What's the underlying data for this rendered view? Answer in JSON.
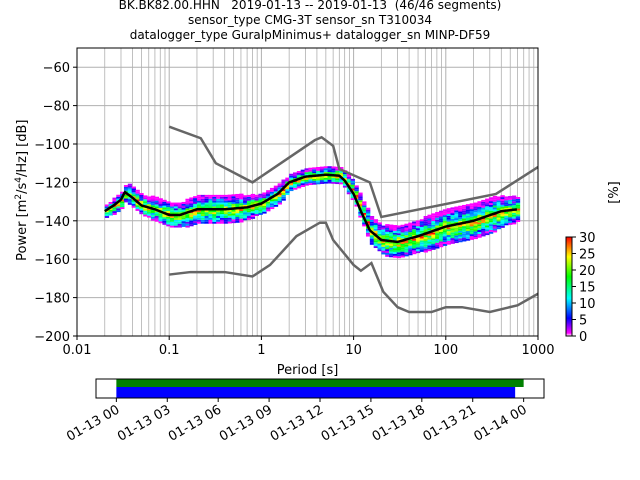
{
  "title": {
    "line1": "BK.BK82.00.HHN   2019-01-13 -- 2019-01-13  (46/46 segments)",
    "line2": "sensor_type CMG-3T sensor_sn T310034",
    "line3": "datalogger_type GuralpMinimus+ datalogger_sn MINP-DF59"
  },
  "chart_data": {
    "type": "heatmap",
    "title": "BK.BK82.00.HHN   2019-01-13 -- 2019-01-13  (46/46 segments)",
    "xlabel": "Period [s]",
    "ylabel_prefix": "Power [m",
    "ylabel_parts": [
      "2",
      "/s",
      "4",
      "/Hz] [dB]"
    ],
    "xscale": "log",
    "xlim": [
      0.01,
      1000
    ],
    "ylim": [
      -200,
      -50
    ],
    "xticks": [
      0.01,
      0.1,
      1,
      10,
      100,
      1000
    ],
    "xtick_labels": [
      "0.01",
      "0.1",
      "1",
      "10",
      "100",
      "1000"
    ],
    "yticks": [
      -200,
      -180,
      -160,
      -140,
      -120,
      -100,
      -80,
      -60
    ],
    "ytick_labels": [
      "−200",
      "−180",
      "−160",
      "−140",
      "−120",
      "−100",
      "−80",
      "−60"
    ],
    "grid": true,
    "colorbar": {
      "label": "[%]",
      "range": [
        0,
        30
      ],
      "ticks": [
        "0",
        "5",
        "10",
        "15",
        "20",
        "25",
        "30"
      ],
      "colormap": "pqlx"
    },
    "mean_curve": {
      "periods": [
        0.02,
        0.025,
        0.03,
        0.033,
        0.04,
        0.05,
        0.07,
        0.1,
        0.13,
        0.2,
        0.4,
        0.7,
        1,
        1.5,
        2,
        3,
        5,
        7,
        8,
        10,
        12,
        15,
        20,
        30,
        50,
        100,
        200,
        400,
        600
      ],
      "power": [
        -135,
        -132,
        -129,
        -125,
        -128,
        -132,
        -134,
        -137,
        -137,
        -134,
        -134,
        -133,
        -131,
        -126,
        -120,
        -117,
        -116,
        -116.5,
        -119,
        -126,
        -135,
        -145,
        -150,
        -151,
        -148,
        -143,
        -140,
        -135,
        -134
      ]
    },
    "histogram_spread_db": [
      [
        0.02,
        3
      ],
      [
        0.04,
        5
      ],
      [
        0.1,
        6
      ],
      [
        0.2,
        7
      ],
      [
        0.5,
        7
      ],
      [
        1,
        5
      ],
      [
        3,
        4
      ],
      [
        7,
        4
      ],
      [
        15,
        7
      ],
      [
        30,
        8
      ],
      [
        100,
        9
      ],
      [
        300,
        9
      ],
      [
        600,
        6
      ]
    ],
    "nhnm": {
      "periods": [
        0.1,
        0.22,
        0.32,
        0.8,
        3.8,
        4.5,
        6,
        7,
        15,
        20,
        350,
        1000
      ],
      "power": [
        -91,
        -97,
        -110,
        -120,
        -98,
        -96.5,
        -101,
        -113,
        -120,
        -138,
        -126,
        -112
      ]
    },
    "nlnm": {
      "periods": [
        0.1,
        0.17,
        0.4,
        0.8,
        1.24,
        2.4,
        4.3,
        5,
        6,
        10,
        12,
        15.6,
        21,
        30,
        40,
        70,
        100,
        150,
        300,
        600,
        1000
      ],
      "power": [
        -168,
        -166.7,
        -166.7,
        -169,
        -163,
        -148,
        -141,
        -141,
        -150,
        -163,
        -166,
        -162,
        -177,
        -185,
        -187.5,
        -187.5,
        -185,
        -185,
        -187.5,
        -184,
        -178
      ]
    },
    "coverage": {
      "xtick_labels": [
        "01-13 00",
        "01-13 03",
        "01-13 06",
        "01-13 09",
        "01-13 12",
        "01-13 15",
        "01-13 18",
        "01-13 21",
        "01-14 00"
      ],
      "xlim_hours": [
        -1.2,
        25.2
      ],
      "green_bar_hours": [
        0,
        24
      ],
      "blue_bar_hours": [
        0,
        23.5
      ],
      "colors": {
        "green": "#008000",
        "blue": "#0000ff"
      }
    }
  }
}
